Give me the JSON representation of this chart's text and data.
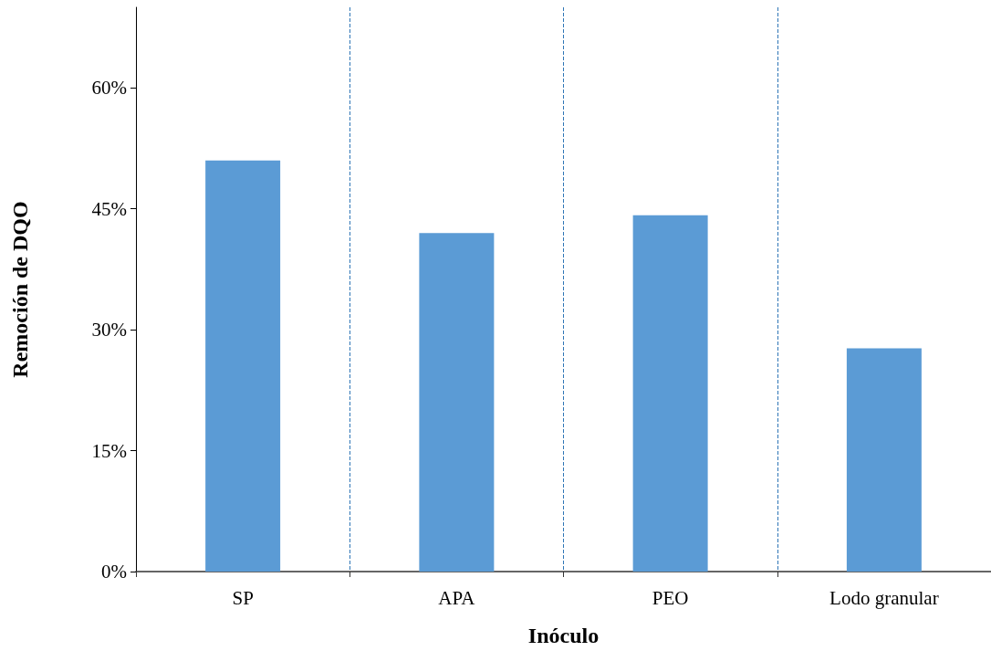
{
  "chart_data": {
    "type": "bar",
    "xlabel": "Inóculo",
    "ylabel": "Remoción de DQO",
    "categories": [
      "SP",
      "APA",
      "PEO",
      "Lodo granular"
    ],
    "series": [
      {
        "color": "#5b9bd5",
        "values": [
          51,
          42,
          44.2,
          27.7
        ]
      }
    ],
    "ylim": [
      0,
      70
    ],
    "yticks": [
      {
        "value": 0,
        "label": "0%"
      },
      {
        "value": 15,
        "label": "15%"
      },
      {
        "value": 30,
        "label": "30%"
      },
      {
        "value": 45,
        "label": "45%"
      },
      {
        "value": 60,
        "label": "60%"
      }
    ],
    "grid": "x"
  }
}
